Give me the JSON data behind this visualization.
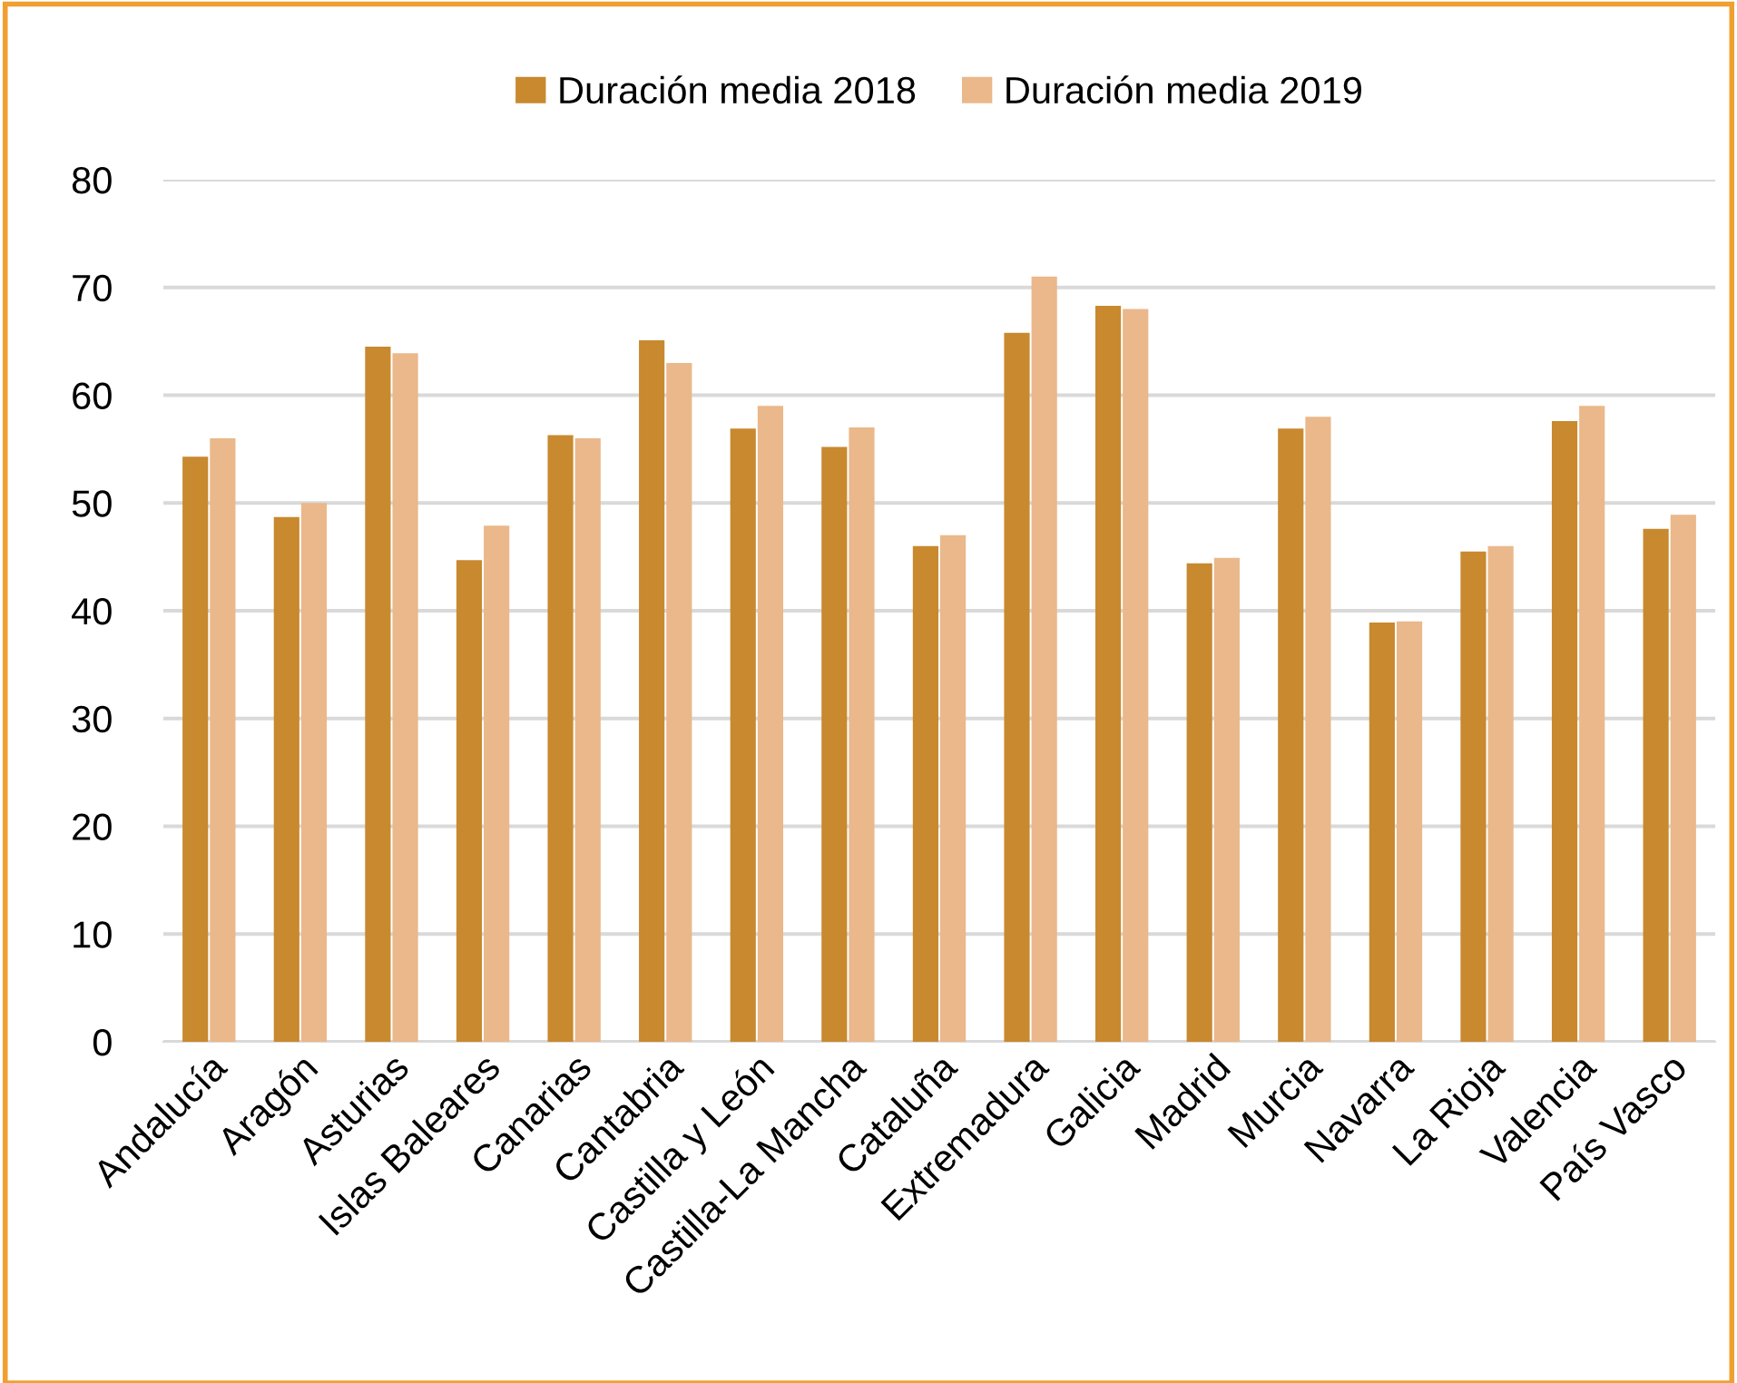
{
  "chart_data": {
    "type": "bar",
    "categories": [
      "Andalucía",
      "Aragón",
      "Asturias",
      "Islas Baleares",
      "Canarias",
      "Cantabria",
      "Castilla y León",
      "Castilla-La Mancha",
      "Cataluña",
      "Extremadura",
      "Galicia",
      "Madrid",
      "Murcia",
      "Navarra",
      "La Rioja",
      "Valencia",
      "País Vasco"
    ],
    "series": [
      {
        "name": "Duración media 2018",
        "color": "#c8892f",
        "values": [
          54.3,
          48.7,
          64.5,
          44.7,
          56.3,
          65.1,
          56.9,
          55.2,
          46.0,
          65.8,
          68.3,
          44.4,
          56.9,
          38.9,
          45.5,
          57.6,
          47.6
        ]
      },
      {
        "name": "Duración media 2019",
        "color": "#eab88a",
        "values": [
          56.0,
          50.0,
          63.9,
          47.9,
          56.0,
          63.0,
          59.0,
          57.0,
          47.0,
          71.0,
          68.0,
          44.9,
          58.0,
          39.0,
          46.0,
          59.0,
          48.9
        ]
      }
    ],
    "ylim": [
      0,
      80
    ],
    "yticks": [
      0,
      10,
      20,
      30,
      40,
      50,
      60,
      70,
      80
    ],
    "grid": "y",
    "legend": "top"
  }
}
